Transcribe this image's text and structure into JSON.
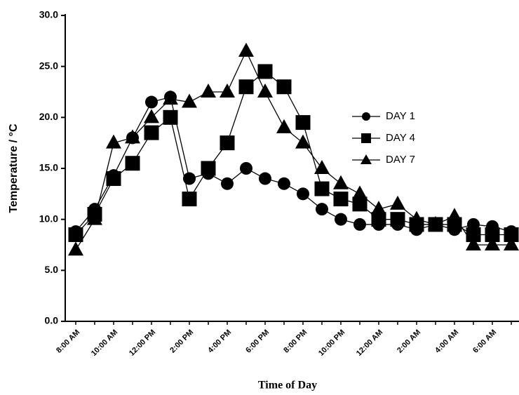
{
  "chart_data": {
    "type": "line",
    "xlabel": "Time of Day",
    "ylabel": "Temperature / °C",
    "categories": [
      "8:00 AM",
      null,
      "10:00 AM",
      null,
      "12:00 PM",
      null,
      "2:00 PM",
      null,
      "4:00 PM",
      null,
      "6:00 PM",
      null,
      "8:00 PM",
      null,
      "10:00 PM",
      null,
      "12:00 AM",
      null,
      "2:00 AM",
      null,
      "4:00 AM",
      null,
      "6:00 AM",
      null
    ],
    "series": [
      {
        "name": "DAY 1",
        "color": "#000000",
        "marker": "circle",
        "values": [
          8.8,
          11.0,
          14.3,
          18.0,
          21.5,
          22.0,
          14.0,
          14.5,
          13.5,
          15.0,
          14.0,
          13.5,
          12.5,
          11.0,
          10.0,
          9.5,
          9.5,
          9.5,
          9.0,
          9.5,
          9.0,
          9.5,
          9.3,
          8.8
        ]
      },
      {
        "name": "DAY 4",
        "color": "#000000",
        "marker": "square",
        "values": [
          8.5,
          10.5,
          14.0,
          15.5,
          18.5,
          20.0,
          12.0,
          15.0,
          17.5,
          23.0,
          24.5,
          23.0,
          19.5,
          13.0,
          12.0,
          11.5,
          10.0,
          10.0,
          9.5,
          9.5,
          9.5,
          8.5,
          8.5,
          8.5
        ]
      },
      {
        "name": "DAY 7",
        "color": "#000000",
        "marker": "triangle",
        "values": [
          7.0,
          10.0,
          17.5,
          18.0,
          20.0,
          21.8,
          21.5,
          22.5,
          22.5,
          26.5,
          22.5,
          19.0,
          17.5,
          15.0,
          13.5,
          12.5,
          11.0,
          11.5,
          10.0,
          9.5,
          10.3,
          7.5,
          7.5,
          7.5
        ]
      }
    ],
    "ylim": [
      0,
      30
    ],
    "yticks": [
      {
        "value": 0,
        "label": "0.0"
      },
      {
        "value": 5,
        "label": "5.0"
      },
      {
        "value": 10,
        "label": "10.0"
      },
      {
        "value": 15,
        "label": "15.0"
      },
      {
        "value": 20,
        "label": "20.0"
      },
      {
        "value": 25,
        "label": "25.0"
      },
      {
        "value": 30,
        "label": "30.0"
      }
    ],
    "grid": false,
    "legend": "right"
  }
}
